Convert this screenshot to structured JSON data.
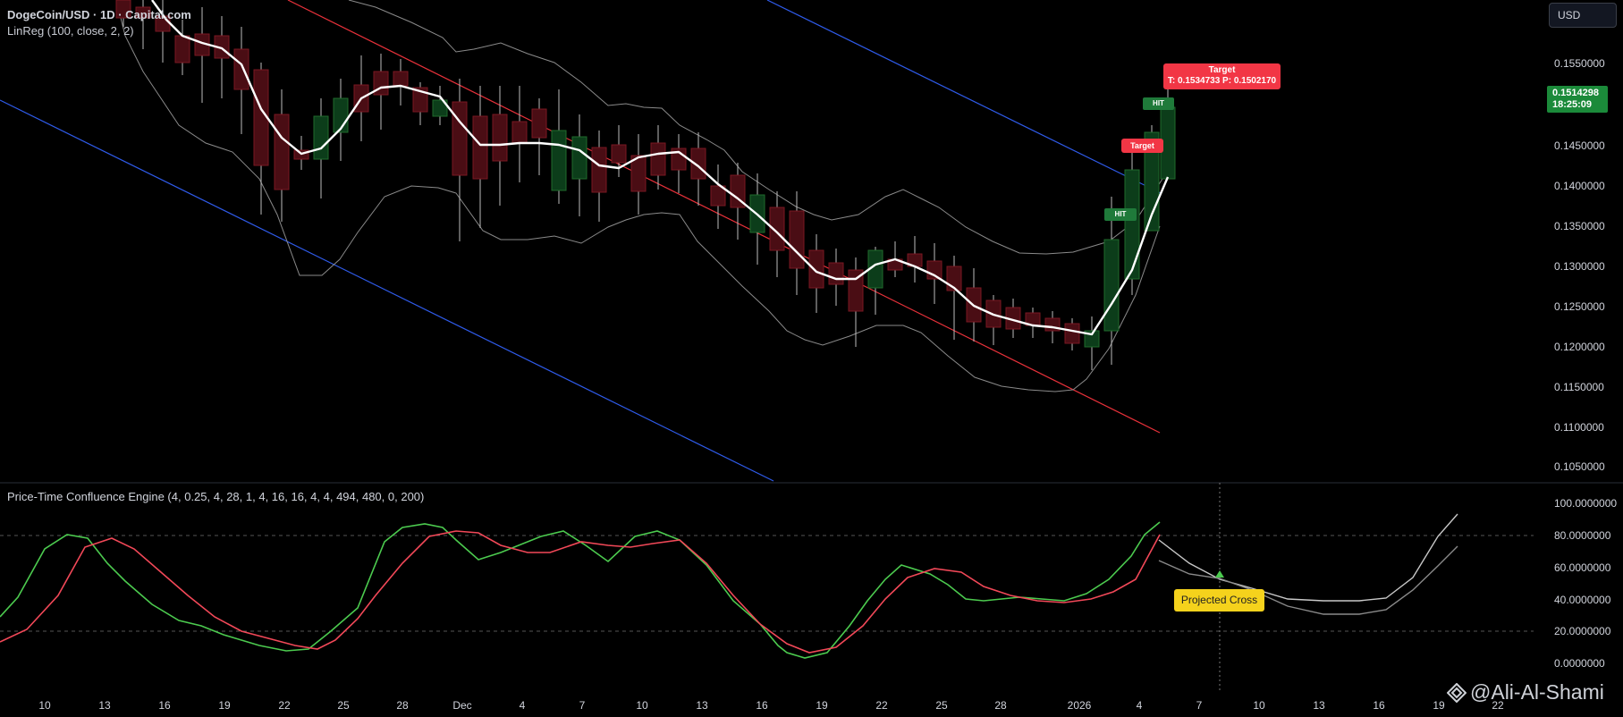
{
  "header": {
    "title": "DogeCoin/USD · 1D · Capital.com",
    "indicator_linreg": "LinReg (100, close, 2, 2)",
    "currency_button": "USD"
  },
  "oscillator": {
    "label": "Price-Time Confluence Engine (4, 0.25, 4, 28, 1, 4, 16, 16, 4, 4, 494, 480, 0, 200)",
    "axis_labels": [
      "100.0000000",
      "80.0000000",
      "60.0000000",
      "40.0000000",
      "20.0000000",
      "0.0000000"
    ],
    "projected_cross_label": "Projected Cross"
  },
  "price_axis": {
    "labels": [
      "0.1550000",
      "0.1450000",
      "0.1400000",
      "0.1350000",
      "0.1300000",
      "0.1250000",
      "0.1200000",
      "0.1150000",
      "0.1100000",
      "0.1050000"
    ],
    "current_price": "0.1514298",
    "countdown": "18:25:09"
  },
  "time_axis": {
    "labels": [
      "10",
      "13",
      "16",
      "19",
      "22",
      "25",
      "28",
      "Dec",
      "4",
      "7",
      "10",
      "13",
      "16",
      "19",
      "22",
      "25",
      "28",
      "2026",
      "4",
      "7",
      "10",
      "13",
      "16",
      "19",
      "22"
    ]
  },
  "annotations": {
    "target_title": "Target",
    "target_values": "T: 0.1534733  P: 0.1502170",
    "target_small": "Target",
    "hit_label": "HIT"
  },
  "watermark": "@Ali-Al-Shami",
  "colors": {
    "background": "#000000",
    "bull": "#0c3d1a",
    "bear": "#4a0d14",
    "regression": "#ffffff",
    "channel_blue": "#2f5bea",
    "channel_red": "#e8313a",
    "osc_green": "#4ccb4f",
    "osc_red": "#f24858",
    "badge_green": "#1b8a3a",
    "target_red": "#f23645",
    "projected_yellow": "#f5d21c"
  }
}
